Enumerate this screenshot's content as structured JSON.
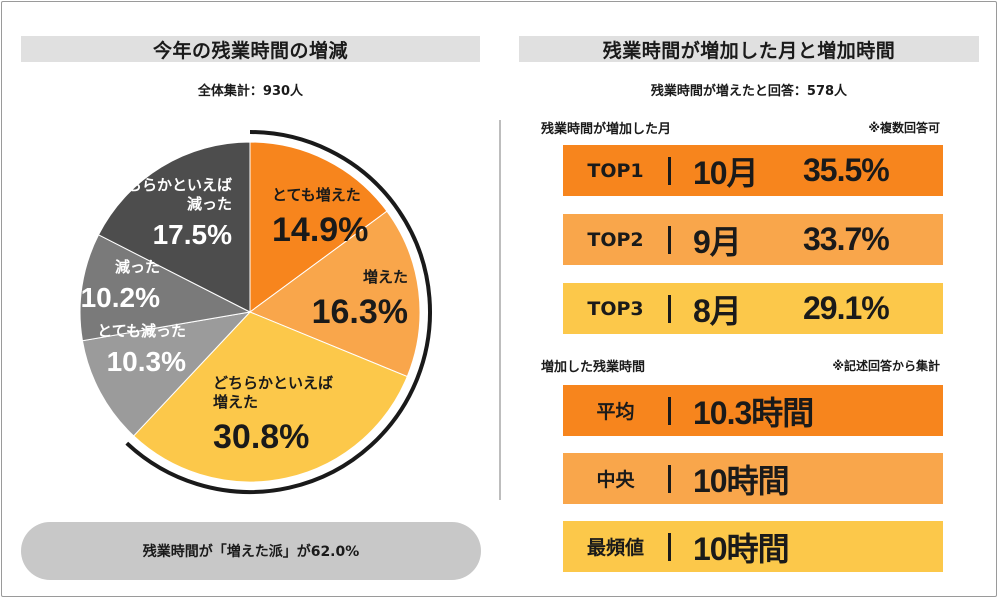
{
  "left": {
    "title": "今年の残業時間の増減",
    "subtitle": "全体集計：930人",
    "summary": "残業時間が「増えた派」が62.0%"
  },
  "right": {
    "title": "残業時間が増加した月と増加時間",
    "subtitle": "残業時間が増えたと回答：578人",
    "months_heading": "残業時間が増加した月",
    "months_note": "※複数回答可",
    "months": [
      {
        "rank": "TOP1",
        "month": "10月",
        "pct": "35.5%"
      },
      {
        "rank": "TOP2",
        "month": "9月",
        "pct": "33.7%"
      },
      {
        "rank": "TOP3",
        "month": "8月",
        "pct": "29.1%"
      }
    ],
    "hours_heading": "増加した残業時間",
    "hours_note": "※記述回答から集計",
    "hours": [
      {
        "label": "平均",
        "value": "10.3時間"
      },
      {
        "label": "中央",
        "value": "10時間"
      },
      {
        "label": "最頻値",
        "value": "10時間"
      }
    ]
  },
  "colors": {
    "orange_dark": "#f7851d",
    "orange_mid": "#f9a64b",
    "yellow": "#fcc84a",
    "gray_dark": "#4d4d4d",
    "gray_mid": "#7a7a7a",
    "gray_light": "#9b9b9b"
  },
  "chart_data": {
    "type": "pie",
    "title": "今年の残業時間の増減",
    "total_label": "全体集計：930人",
    "start_angle_deg": 0,
    "direction": "clockwise",
    "slices": [
      {
        "label": [
          "とても増えた"
        ],
        "value": 14.9,
        "value_text": "14.9%",
        "color": "#f7851d"
      },
      {
        "label": [
          "増えた"
        ],
        "value": 16.3,
        "value_text": "16.3%",
        "color": "#f9a64b"
      },
      {
        "label": [
          "どちらかといえば",
          "増えた"
        ],
        "value": 30.8,
        "value_text": "30.8%",
        "color": "#fcc84a"
      },
      {
        "label": [
          "とても減った"
        ],
        "value": 10.3,
        "value_text": "10.3%",
        "color": "#9b9b9b"
      },
      {
        "label": [
          "減った"
        ],
        "value": 10.2,
        "value_text": "10.2%",
        "color": "#7a7a7a"
      },
      {
        "label": [
          "どちらかといえば",
          "減った"
        ],
        "value": 17.5,
        "value_text": "17.5%",
        "color": "#4d4d4d"
      }
    ],
    "highlight_arc": {
      "label": "増えた派",
      "value_text": "62.0%",
      "from_slice": 0,
      "to_slice": 2
    }
  }
}
